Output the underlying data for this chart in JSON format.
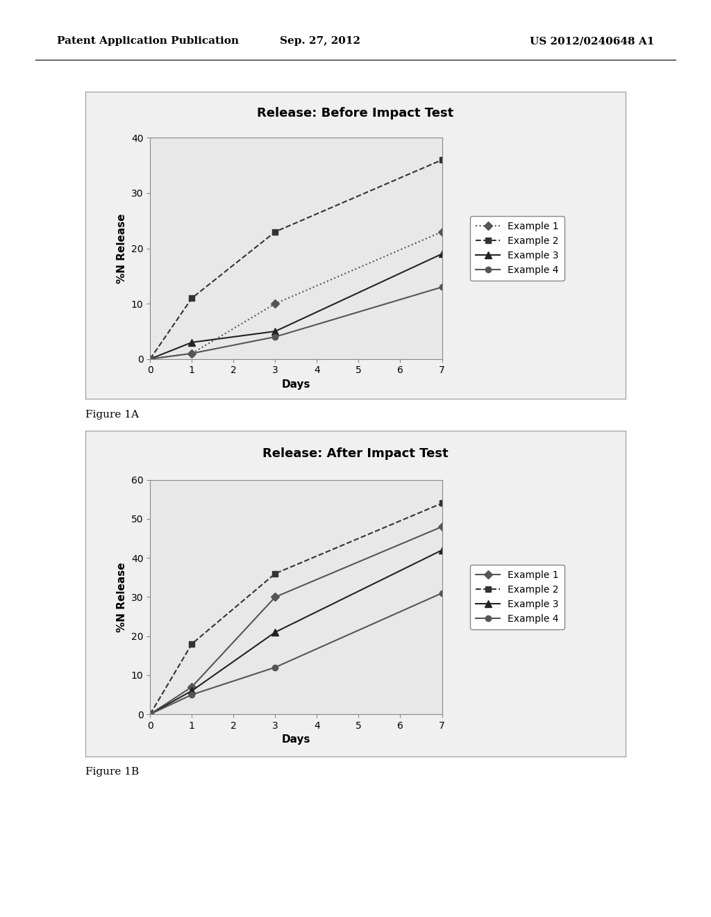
{
  "chart1": {
    "title": "Release: Before Impact Test",
    "ylabel": "%N Release",
    "xlabel": "Days",
    "xlim": [
      0,
      7
    ],
    "ylim": [
      0,
      40
    ],
    "xticks": [
      0,
      1,
      2,
      3,
      4,
      5,
      6,
      7
    ],
    "yticks": [
      0,
      10,
      20,
      30,
      40
    ],
    "series": [
      {
        "label": "Example 1",
        "x": [
          0,
          1,
          3,
          7
        ],
        "y": [
          0,
          1,
          10,
          23
        ],
        "linestyle": "dotted",
        "marker": "D",
        "color": "#555555",
        "linewidth": 1.5,
        "markersize": 6
      },
      {
        "label": "Example 2",
        "x": [
          0,
          1,
          3,
          7
        ],
        "y": [
          0,
          11,
          23,
          36
        ],
        "linestyle": "dashed",
        "marker": "s",
        "color": "#333333",
        "linewidth": 1.5,
        "markersize": 6
      },
      {
        "label": "Example 3",
        "x": [
          0,
          1,
          3,
          7
        ],
        "y": [
          0,
          3,
          5,
          19
        ],
        "linestyle": "solid",
        "marker": "^",
        "color": "#222222",
        "linewidth": 1.5,
        "markersize": 7
      },
      {
        "label": "Example 4",
        "x": [
          0,
          1,
          3,
          7
        ],
        "y": [
          0,
          1,
          4,
          13
        ],
        "linestyle": "solid",
        "marker": "o",
        "color": "#555555",
        "linewidth": 1.5,
        "markersize": 6
      }
    ]
  },
  "chart2": {
    "title": "Release: After Impact Test",
    "ylabel": "%N Release",
    "xlabel": "Days",
    "xlim": [
      0,
      7
    ],
    "ylim": [
      0,
      60
    ],
    "xticks": [
      0,
      1,
      2,
      3,
      4,
      5,
      6,
      7
    ],
    "yticks": [
      0,
      10,
      20,
      30,
      40,
      50,
      60
    ],
    "series": [
      {
        "label": "Example 1",
        "x": [
          0,
          1,
          3,
          7
        ],
        "y": [
          0,
          7,
          30,
          48
        ],
        "linestyle": "solid",
        "marker": "D",
        "color": "#555555",
        "linewidth": 1.5,
        "markersize": 6
      },
      {
        "label": "Example 2",
        "x": [
          0,
          1,
          3,
          7
        ],
        "y": [
          0,
          18,
          36,
          54
        ],
        "linestyle": "dashed",
        "marker": "s",
        "color": "#333333",
        "linewidth": 1.5,
        "markersize": 6
      },
      {
        "label": "Example 3",
        "x": [
          0,
          1,
          3,
          7
        ],
        "y": [
          0,
          6,
          21,
          42
        ],
        "linestyle": "solid",
        "marker": "^",
        "color": "#222222",
        "linewidth": 1.5,
        "markersize": 7
      },
      {
        "label": "Example 4",
        "x": [
          0,
          1,
          3,
          7
        ],
        "y": [
          0,
          5,
          12,
          31
        ],
        "linestyle": "solid",
        "marker": "o",
        "color": "#555555",
        "linewidth": 1.5,
        "markersize": 6
      }
    ]
  },
  "header": {
    "left": "Patent Application Publication",
    "center": "Sep. 27, 2012",
    "right": "US 2012/0240648 A1"
  },
  "fig1_label": "Figure 1A",
  "fig2_label": "Figure 1B",
  "background_color": "#ffffff"
}
